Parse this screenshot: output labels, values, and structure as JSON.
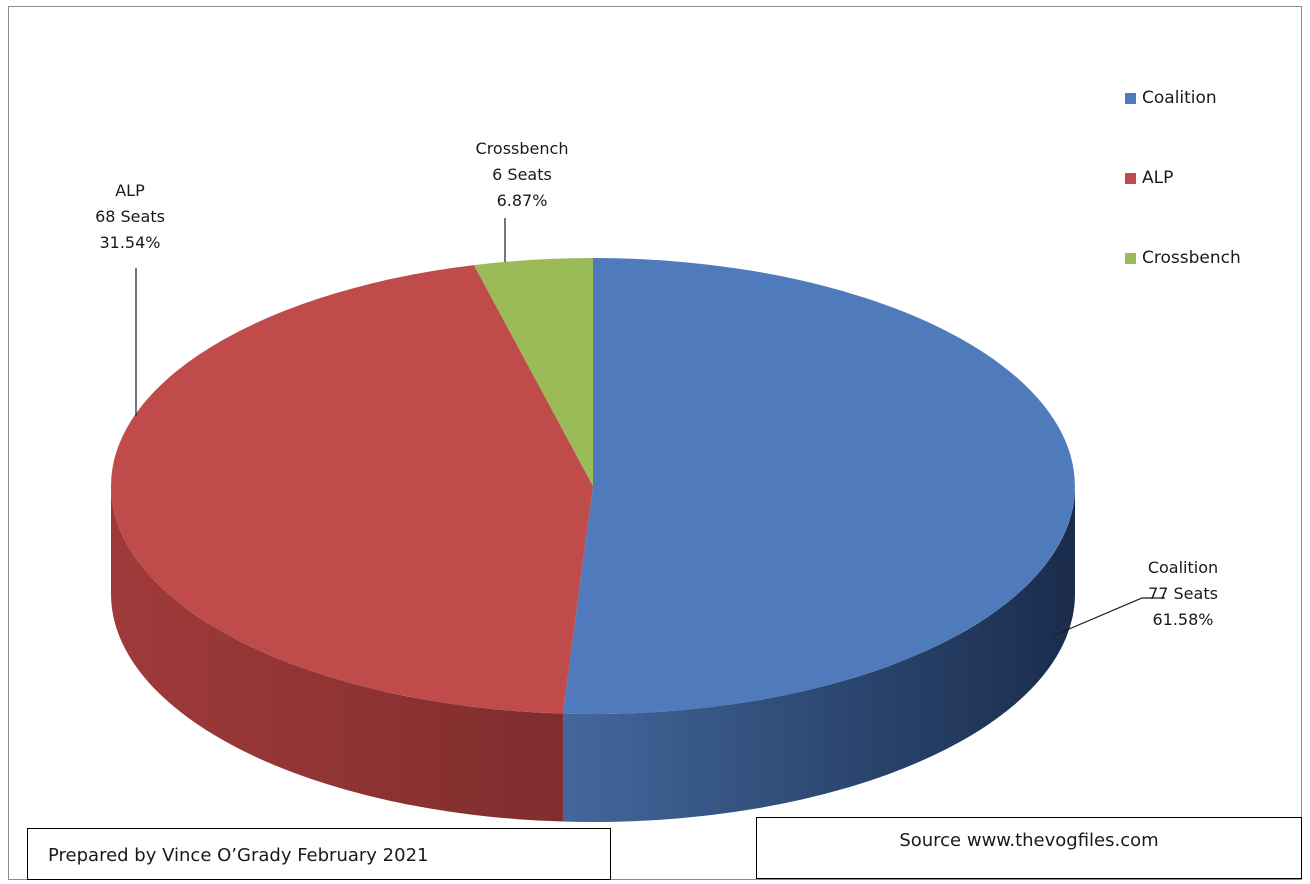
{
  "chart_data": {
    "type": "pie",
    "title": "",
    "slices": [
      {
        "name": "Coalition",
        "seats": 77,
        "percent": 61.58,
        "color": "#4f7bbd",
        "label_lines": [
          "Coalition",
          "77 Seats",
          "61.58%"
        ]
      },
      {
        "name": "ALP",
        "seats": 68,
        "percent": 31.54,
        "color": "#bf4b4b",
        "label_lines": [
          "ALP",
          "68 Seats",
          "31.54%"
        ]
      },
      {
        "name": "Crossbench",
        "seats": 6,
        "percent": 6.87,
        "color": "#9bbb59",
        "label_lines": [
          "Crossbench",
          "6 Seats",
          "6.87%"
        ]
      }
    ],
    "legend_position": "top-right",
    "style": "3d"
  },
  "legend": [
    {
      "label": "Coalition",
      "color": "#4f7bbd"
    },
    {
      "label": "ALP",
      "color": "#bf4b4b"
    },
    {
      "label": "Crossbench",
      "color": "#9bbb59"
    }
  ],
  "footer": {
    "credit": "Prepared by Vince O’Grady February 2021",
    "source": "Source www.thevogfiles.com"
  }
}
